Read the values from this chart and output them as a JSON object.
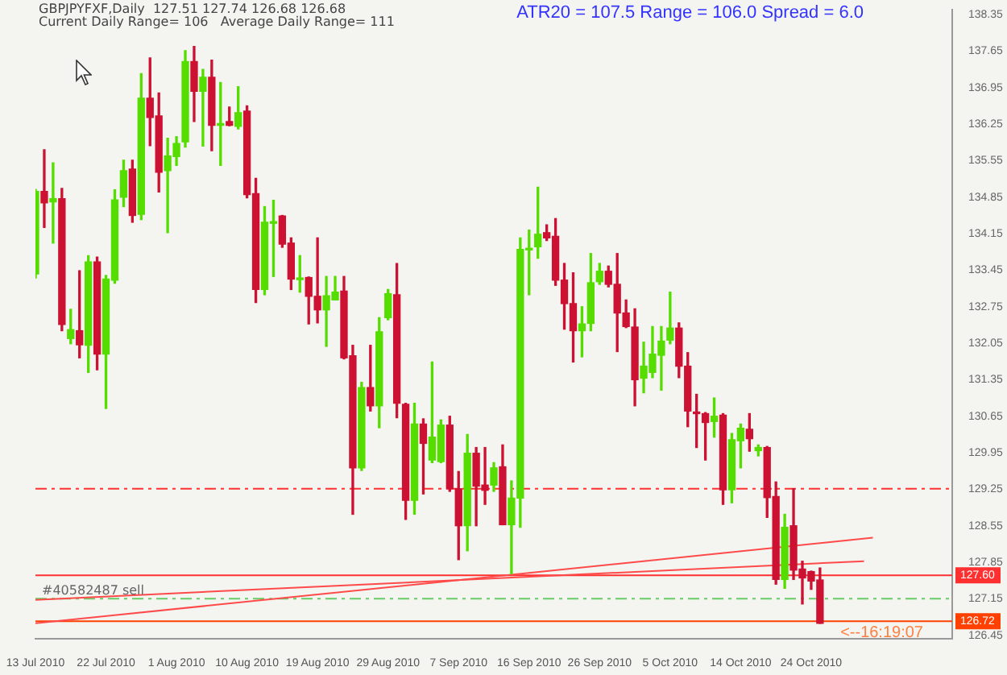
{
  "chart_data": {
    "type": "candlestick",
    "title": "GBPJPYFXF,Daily  127.51 127.74 126.68 126.68",
    "subtitle": "Current Daily Range= 106   Average Daily Range= 111",
    "annotations": [
      "ATR20 = 107.5 Range = 106.0 Spread = 6.0",
      "<--16:19:07"
    ],
    "categories": [
      "13 Jul 2010",
      null,
      null,
      null,
      null,
      null,
      null,
      null,
      "22 Jul 2010",
      null,
      null,
      null,
      null,
      null,
      null,
      null,
      "1 Aug 2010",
      null,
      null,
      null,
      null,
      null,
      null,
      null,
      "10 Aug 2010",
      null,
      null,
      null,
      null,
      null,
      null,
      null,
      "19 Aug 2010",
      null,
      null,
      null,
      null,
      null,
      null,
      null,
      "29 Aug 2010",
      null,
      null,
      null,
      null,
      null,
      null,
      null,
      "7 Sep 2010",
      null,
      null,
      null,
      null,
      null,
      null,
      null,
      "16 Sep 2010",
      null,
      null,
      null,
      null,
      null,
      null,
      null,
      "26 Sep 2010",
      null,
      null,
      null,
      null,
      null,
      null,
      null,
      "5 Oct 2010",
      null,
      null,
      null,
      null,
      null,
      null,
      null,
      "14 Oct 2010",
      null,
      null,
      null,
      null,
      null,
      null,
      null,
      "24 Oct 2010",
      null,
      null,
      null,
      null,
      null,
      null,
      null,
      null,
      null,
      null,
      null,
      null,
      null,
      null,
      null,
      null
    ],
    "ohlc": [
      [
        133.38,
        135.0,
        133.3,
        134.96
      ],
      [
        134.96,
        135.76,
        134.27,
        134.74
      ],
      [
        134.76,
        135.51,
        133.97,
        134.82
      ],
      [
        134.82,
        135.02,
        132.29,
        132.41
      ],
      [
        132.14,
        132.7,
        132.04,
        132.31
      ],
      [
        132.29,
        133.44,
        131.77,
        132.02
      ],
      [
        132.01,
        133.73,
        131.49,
        133.61
      ],
      [
        133.61,
        133.7,
        131.54,
        131.84
      ],
      [
        131.84,
        133.35,
        130.8,
        133.28
      ],
      [
        133.26,
        134.99,
        133.2,
        134.8
      ],
      [
        134.85,
        135.56,
        134.67,
        135.36
      ],
      [
        135.39,
        135.56,
        134.37,
        134.5
      ],
      [
        134.52,
        137.22,
        134.42,
        136.75
      ],
      [
        136.75,
        137.52,
        135.84,
        136.38
      ],
      [
        136.41,
        136.85,
        134.95,
        135.33
      ],
      [
        135.36,
        135.98,
        134.17,
        135.64
      ],
      [
        135.63,
        136.01,
        135.46,
        135.88
      ],
      [
        135.91,
        137.66,
        135.81,
        137.45
      ],
      [
        137.45,
        137.74,
        136.3,
        136.88
      ],
      [
        136.88,
        137.3,
        135.83,
        137.15
      ],
      [
        137.15,
        137.48,
        135.74,
        136.23
      ],
      [
        136.23,
        137.05,
        135.46,
        136.25
      ],
      [
        136.3,
        136.58,
        136.22,
        136.23
      ],
      [
        136.21,
        136.97,
        136.16,
        136.47
      ],
      [
        136.5,
        136.6,
        134.84,
        134.9
      ],
      [
        134.92,
        135.21,
        132.83,
        133.08
      ],
      [
        133.08,
        134.67,
        132.98,
        134.37
      ],
      [
        134.35,
        134.79,
        133.33,
        134.38
      ],
      [
        134.49,
        134.5,
        133.89,
        133.95
      ],
      [
        133.97,
        134.07,
        133.08,
        133.28
      ],
      [
        133.27,
        133.73,
        133.03,
        133.29
      ],
      [
        133.31,
        133.32,
        132.42,
        132.95
      ],
      [
        132.95,
        134.07,
        132.44,
        132.69
      ],
      [
        132.69,
        133.33,
        131.99,
        132.96
      ],
      [
        132.88,
        133.33,
        132.88,
        133.03
      ],
      [
        133.05,
        133.33,
        131.75,
        131.77
      ],
      [
        131.81,
        132.01,
        128.77,
        129.66
      ],
      [
        129.66,
        131.3,
        129.61,
        131.2
      ],
      [
        131.2,
        132.01,
        130.75,
        130.85
      ],
      [
        130.85,
        132.54,
        130.43,
        132.27
      ],
      [
        132.54,
        133.08,
        132.5,
        133.0
      ],
      [
        132.98,
        133.58,
        130.62,
        130.9
      ],
      [
        130.88,
        130.9,
        128.67,
        129.04
      ],
      [
        129.04,
        130.9,
        128.77,
        130.5
      ],
      [
        130.5,
        130.6,
        129.16,
        130.13
      ],
      [
        129.81,
        131.69,
        129.76,
        130.25
      ],
      [
        129.78,
        130.58,
        129.76,
        130.48
      ],
      [
        130.48,
        130.65,
        129.21,
        129.26
      ],
      [
        129.26,
        129.59,
        127.9,
        128.55
      ],
      [
        128.55,
        130.3,
        128.07,
        129.94
      ],
      [
        129.94,
        130.05,
        128.55,
        129.31
      ],
      [
        129.33,
        130.05,
        128.96,
        129.23
      ],
      [
        129.33,
        129.76,
        129.21,
        129.66
      ],
      [
        129.68,
        130.1,
        128.57,
        128.57
      ],
      [
        128.57,
        129.41,
        127.63,
        129.08
      ],
      [
        129.08,
        134.07,
        128.52,
        133.85
      ],
      [
        133.84,
        134.22,
        132.98,
        133.87
      ],
      [
        133.9,
        135.04,
        133.68,
        134.14
      ],
      [
        134.17,
        134.32,
        134.02,
        134.07
      ],
      [
        134.1,
        134.44,
        133.16,
        133.26
      ],
      [
        133.26,
        133.58,
        132.32,
        132.81
      ],
      [
        132.81,
        133.4,
        131.69,
        132.29
      ],
      [
        132.29,
        132.75,
        131.79,
        132.42
      ],
      [
        132.43,
        133.77,
        132.29,
        133.21
      ],
      [
        133.23,
        133.58,
        133.18,
        133.43
      ],
      [
        133.43,
        133.53,
        133.13,
        133.18
      ],
      [
        133.18,
        133.77,
        131.89,
        132.63
      ],
      [
        132.63,
        132.88,
        132.35,
        132.37
      ],
      [
        132.36,
        132.71,
        130.85,
        131.35
      ],
      [
        131.38,
        132.07,
        131.1,
        131.61
      ],
      [
        131.49,
        132.37,
        131.39,
        131.84
      ],
      [
        131.82,
        132.37,
        131.15,
        132.09
      ],
      [
        132.11,
        133.03,
        132.04,
        132.34
      ],
      [
        132.34,
        132.44,
        131.39,
        131.61
      ],
      [
        131.61,
        131.87,
        130.45,
        130.75
      ],
      [
        130.73,
        131.07,
        130.05,
        130.7
      ],
      [
        130.7,
        130.72,
        129.81,
        130.53
      ],
      [
        130.55,
        131.0,
        130.25,
        130.65
      ],
      [
        130.67,
        130.7,
        128.96,
        129.24
      ],
      [
        129.24,
        130.32,
        128.99,
        130.2
      ],
      [
        130.18,
        130.5,
        129.66,
        130.42
      ],
      [
        130.4,
        130.7,
        129.98,
        130.22
      ],
      [
        129.99,
        130.1,
        129.89,
        130.05
      ],
      [
        130.05,
        130.07,
        128.71,
        129.09
      ],
      [
        129.11,
        129.39,
        127.43,
        127.52
      ],
      [
        127.52,
        128.77,
        127.35,
        128.52
      ],
      [
        128.55,
        129.26,
        127.52,
        127.7
      ],
      [
        127.72,
        127.87,
        127.05,
        127.55
      ],
      [
        127.67,
        127.68,
        127.33,
        127.49
      ],
      [
        127.51,
        127.74,
        126.68,
        126.68
      ],
      null,
      null,
      null,
      null,
      null,
      null,
      null,
      null,
      null,
      null,
      null,
      null,
      null,
      null,
      null
    ],
    "colors": [
      "#55dd00",
      "#cc1133",
      "#55dd00",
      "#cc1133",
      "#55dd00",
      "#cc1133",
      "#55dd00",
      "#cc1133",
      "#55dd00",
      "#55dd00",
      "#55dd00",
      "#cc1133",
      "#55dd00",
      "#cc1133",
      "#cc1133",
      "#55dd00",
      "#55dd00",
      "#55dd00",
      "#cc1133",
      "#55dd00",
      "#cc1133",
      "#55dd00",
      "#cc1133",
      "#55dd00",
      "#cc1133",
      "#cc1133",
      "#55dd00",
      "#55dd00",
      "#cc1133",
      "#cc1133",
      "#55dd00",
      "#cc1133",
      "#cc1133",
      "#55dd00",
      "#55dd00",
      "#cc1133",
      "#cc1133",
      "#55dd00",
      "#cc1133",
      "#55dd00",
      "#55dd00",
      "#cc1133",
      "#cc1133",
      "#55dd00",
      "#cc1133",
      "#55dd00",
      "#55dd00",
      "#cc1133",
      "#cc1133",
      "#55dd00",
      "#cc1133",
      "#cc1133",
      "#55dd00",
      "#cc1133",
      "#55dd00",
      "#55dd00",
      "#55dd00",
      "#55dd00",
      "#cc1133",
      "#cc1133",
      "#cc1133",
      "#cc1133",
      "#55dd00",
      "#55dd00",
      "#55dd00",
      "#cc1133",
      "#cc1133",
      "#cc1133",
      "#cc1133",
      "#55dd00",
      "#55dd00",
      "#55dd00",
      "#55dd00",
      "#cc1133",
      "#cc1133",
      "#cc1133",
      "#cc1133",
      "#55dd00",
      "#cc1133",
      "#55dd00",
      "#55dd00",
      "#cc1133",
      "#55dd00",
      "#cc1133",
      "#cc1133",
      "#55dd00",
      "#cc1133",
      "#cc1133",
      "#cc1133",
      "#cc1133",
      null,
      null,
      null,
      null,
      null,
      null,
      null,
      null,
      null,
      null,
      null,
      null,
      null,
      null,
      null
    ],
    "series": [
      {
        "type": "line",
        "color": "#ff4a4a",
        "values": [
          126.68,
          null,
          null,
          null,
          null,
          null,
          null,
          null,
          null,
          null,
          null,
          null,
          null,
          null,
          null,
          null,
          null,
          null,
          null,
          null,
          null,
          null,
          null,
          null,
          null,
          null,
          null,
          null,
          null,
          null,
          null,
          null,
          null,
          null,
          null,
          null,
          null,
          null,
          null,
          null,
          null,
          null,
          null,
          null,
          null,
          null,
          null,
          null,
          null,
          null,
          null,
          null,
          null,
          null,
          null,
          null,
          null,
          null,
          null,
          null,
          null,
          null,
          null,
          null,
          null,
          null,
          null,
          null,
          null,
          null,
          null,
          null,
          null,
          null,
          null,
          null,
          null,
          null,
          null,
          null,
          null,
          null,
          null,
          null,
          null,
          null,
          null,
          null,
          null,
          null,
          null,
          null,
          null,
          null,
          null,
          128.32,
          null,
          null,
          null,
          null,
          null,
          null,
          null,
          null,
          null
        ]
      },
      {
        "type": "line",
        "color": "#ff4a4a",
        "values": [
          127.13,
          null,
          null,
          null,
          null,
          null,
          null,
          null,
          null,
          null,
          null,
          null,
          null,
          null,
          null,
          null,
          null,
          null,
          null,
          null,
          null,
          null,
          null,
          null,
          null,
          null,
          null,
          null,
          null,
          null,
          null,
          null,
          null,
          null,
          null,
          null,
          null,
          null,
          null,
          null,
          null,
          null,
          null,
          null,
          null,
          null,
          null,
          null,
          null,
          null,
          null,
          null,
          null,
          null,
          null,
          null,
          null,
          null,
          null,
          null,
          null,
          null,
          null,
          null,
          null,
          null,
          null,
          null,
          null,
          null,
          null,
          null,
          null,
          null,
          null,
          null,
          null,
          null,
          null,
          null,
          null,
          null,
          null,
          null,
          null,
          null,
          null,
          null,
          null,
          null,
          null,
          null,
          null,
          null,
          127.87,
          null,
          null,
          null,
          null,
          null,
          null,
          null,
          null,
          null,
          null
        ]
      }
    ],
    "ylim": [
      126.38,
      138.44
    ],
    "yticks": [
      126.45,
      127.15,
      127.85,
      128.55,
      129.25,
      129.95,
      130.65,
      131.35,
      132.05,
      132.75,
      133.45,
      134.15,
      134.85,
      135.55,
      136.25,
      136.95,
      137.65,
      138.35
    ],
    "ref_lines": [
      {
        "axis": "y",
        "value": 129.26,
        "color": "#ff3030",
        "line_style": "dashed"
      },
      {
        "axis": "y",
        "value": 127.15,
        "color": "#66cc66",
        "line_style": "dashed",
        "label": "#40582487 sell"
      },
      {
        "axis": "y",
        "value": 127.6,
        "color": "#ff3030",
        "line_style": "solid",
        "label": "127.60"
      },
      {
        "axis": "y",
        "value": 126.72,
        "color": "#ff4000",
        "line_style": "solid",
        "label": "126.72"
      }
    ],
    "grid": false,
    "legend": false
  }
}
